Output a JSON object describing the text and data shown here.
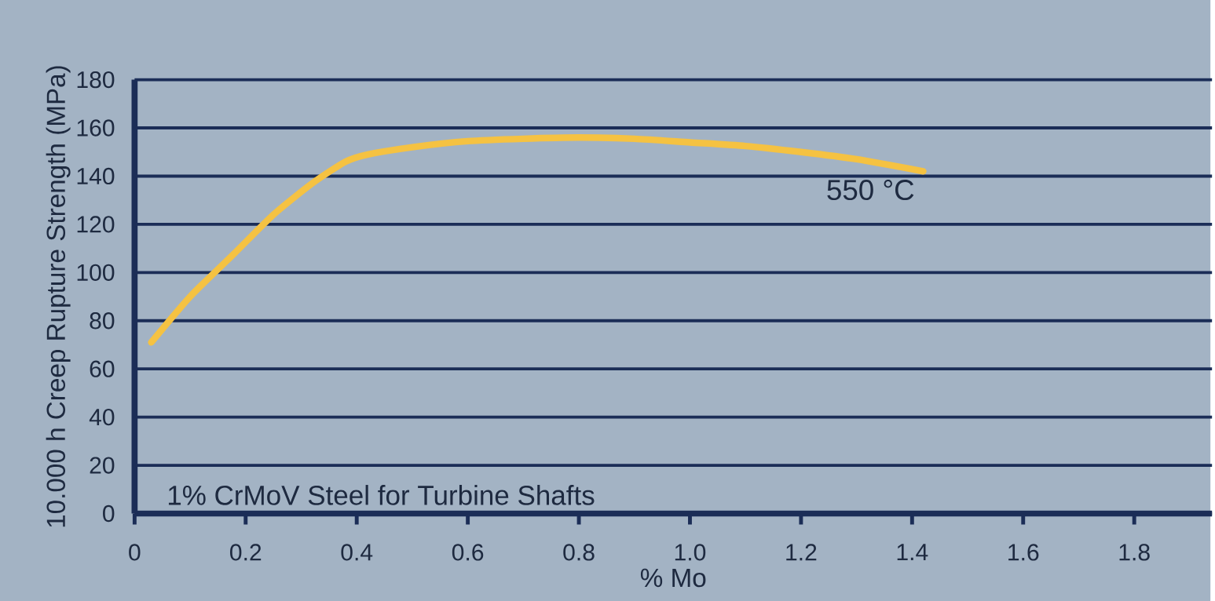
{
  "chart_data": {
    "type": "line",
    "xlabel": "% Mo",
    "ylabel": "10.000 h Creep Rupture Strength (MPa)",
    "x": [
      0.03,
      0.1,
      0.18,
      0.25,
      0.32,
      0.38,
      0.42,
      0.5,
      0.6,
      0.7,
      0.8,
      0.9,
      1.0,
      1.1,
      1.2,
      1.3,
      1.42
    ],
    "series": [
      {
        "color": "#f5c242",
        "values": [
          71,
          90,
          108,
          124,
          137,
          146,
          149,
          152,
          154.5,
          155.5,
          156,
          155.5,
          154,
          152.5,
          150,
          147,
          142
        ]
      }
    ],
    "xlim": [
      0,
      1.94
    ],
    "ylim": [
      0,
      180
    ],
    "xticks": [
      0,
      0.2,
      0.4,
      0.6,
      0.8,
      {
        "value": 1,
        "label": "1.0"
      },
      1.2,
      1.4,
      1.6,
      1.8
    ],
    "yticks": [
      0,
      20,
      40,
      60,
      80,
      100,
      120,
      140,
      160,
      180
    ],
    "grid": "y",
    "line_style": "solid",
    "annotations": [
      "550 °C",
      "1% CrMoV Steel for Turbine Shafts"
    ]
  }
}
